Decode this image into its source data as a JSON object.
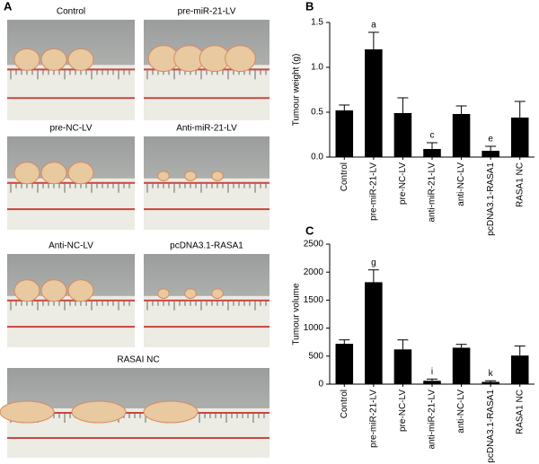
{
  "panel_a": {
    "label": "A",
    "photos": [
      {
        "caption": "Control"
      },
      {
        "caption": "pre-miR-21-LV"
      },
      {
        "caption": "pre-NC-LV"
      },
      {
        "caption": "Anti-miR-21-LV"
      },
      {
        "caption": "Anti-NC-LV"
      },
      {
        "caption": "pcDNA3.1-RASA1"
      },
      {
        "caption": "RASAI NC"
      }
    ]
  },
  "chart_data": [
    {
      "type": "bar",
      "panel": "B",
      "ylabel": "Tumour weight (g)",
      "categories": [
        "Control",
        "pre-miR-21-LV",
        "pre-NC-LV",
        "anti-miR-21-LV",
        "anti-NC-LV",
        "pcDNA3.1-RASA1",
        "RASA1 NC"
      ],
      "values": [
        0.52,
        1.2,
        0.49,
        0.09,
        0.48,
        0.07,
        0.44
      ],
      "errors": [
        0.06,
        0.19,
        0.17,
        0.07,
        0.09,
        0.05,
        0.18
      ],
      "annotations": [
        null,
        "a",
        null,
        "c",
        null,
        "e",
        null
      ],
      "color": "#000000",
      "ylim": [
        0,
        1.5
      ],
      "yticks": [
        {
          "value": 0,
          "label": "0.0"
        },
        0.5,
        {
          "value": 1,
          "label": "1.0"
        },
        1.5
      ]
    },
    {
      "type": "bar",
      "panel": "C",
      "ylabel": "Tumour volume",
      "categories": [
        "Control",
        "pre-miR-21-LV",
        "pre-NC-LV",
        "anti-miR-21-LV",
        "anti-NC-LV",
        "pcDNA3.1-RASA1",
        "RASA1 NC"
      ],
      "values": [
        720,
        1820,
        620,
        60,
        650,
        40,
        510
      ],
      "errors": [
        70,
        220,
        170,
        30,
        60,
        20,
        170
      ],
      "annotations": [
        null,
        "g",
        null,
        "i",
        null,
        "k",
        null
      ],
      "color": "#000000",
      "ylim": [
        0,
        2500
      ],
      "yticks": [
        0,
        500,
        1000,
        1500,
        2000,
        2500
      ]
    }
  ]
}
